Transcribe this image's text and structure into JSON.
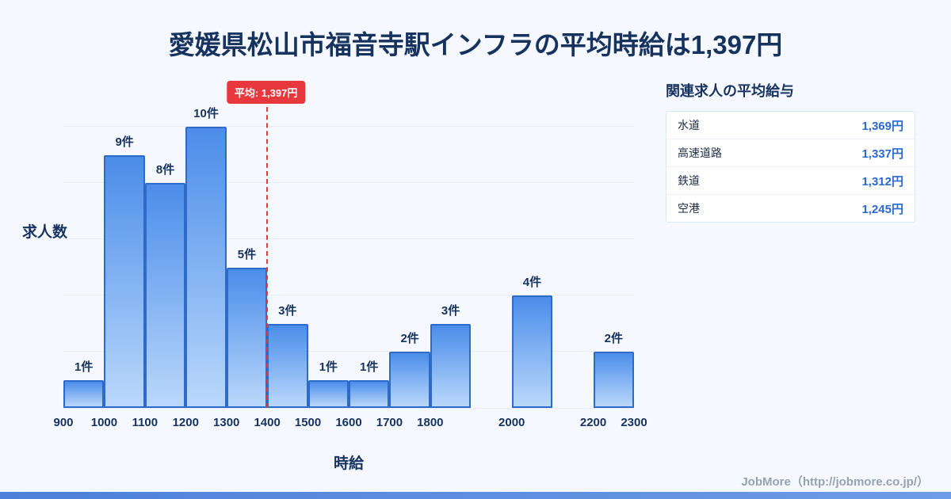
{
  "title": "愛媛県松山市福音寺駅インフラの平均時給は1,397円",
  "chart_data": {
    "type": "bar",
    "title": "愛媛県松山市福音寺駅インフラの平均時給は1,397円",
    "xlabel": "時給",
    "ylabel": "求人数",
    "x_range": [
      900,
      2300
    ],
    "ylim": [
      0,
      11
    ],
    "grid_step": 2,
    "bin_width": 100,
    "unit_suffix": "件",
    "x_ticks": [
      900,
      1000,
      1100,
      1200,
      1300,
      1400,
      1500,
      1600,
      1700,
      1800,
      2000,
      2200,
      2300
    ],
    "bars": [
      {
        "start": 900,
        "count": 1,
        "label": "1件"
      },
      {
        "start": 1000,
        "count": 9,
        "label": "9件"
      },
      {
        "start": 1100,
        "count": 8,
        "label": "8件"
      },
      {
        "start": 1200,
        "count": 10,
        "label": "10件"
      },
      {
        "start": 1300,
        "count": 5,
        "label": "5件"
      },
      {
        "start": 1400,
        "count": 3,
        "label": "3件"
      },
      {
        "start": 1500,
        "count": 1,
        "label": "1件"
      },
      {
        "start": 1600,
        "count": 1,
        "label": "1件"
      },
      {
        "start": 1700,
        "count": 2,
        "label": "2件"
      },
      {
        "start": 1800,
        "count": 3,
        "label": "3件"
      },
      {
        "start": 2000,
        "count": 4,
        "label": "4件"
      },
      {
        "start": 2200,
        "count": 2,
        "label": "2件"
      }
    ],
    "average": {
      "value": 1397,
      "label": "平均: 1,397円"
    },
    "legend": "off",
    "grid": "on"
  },
  "side_panel": {
    "title": "関連求人の平均給与",
    "rows": [
      {
        "label": "水道",
        "value": "1,369円"
      },
      {
        "label": "高速道路",
        "value": "1,337円"
      },
      {
        "label": "鉄道",
        "value": "1,312円"
      },
      {
        "label": "空港",
        "value": "1,245円"
      }
    ]
  },
  "footer": {
    "credit": "JobMore（http://jobmore.co.jp/）"
  },
  "colors": {
    "bg": "#f5f9ff",
    "navy": "#16325f",
    "accent-red": "#e8383d",
    "bar-top": "#4b8dea",
    "bar-bottom": "#bad8fb",
    "bar-border": "#2e6ac8",
    "grid": "#e5ecf6",
    "value-blue": "#2a6ad0",
    "card-border": "#dce8f8",
    "credit-gray": "#98a1af",
    "strip-blue": "#4d80da"
  }
}
